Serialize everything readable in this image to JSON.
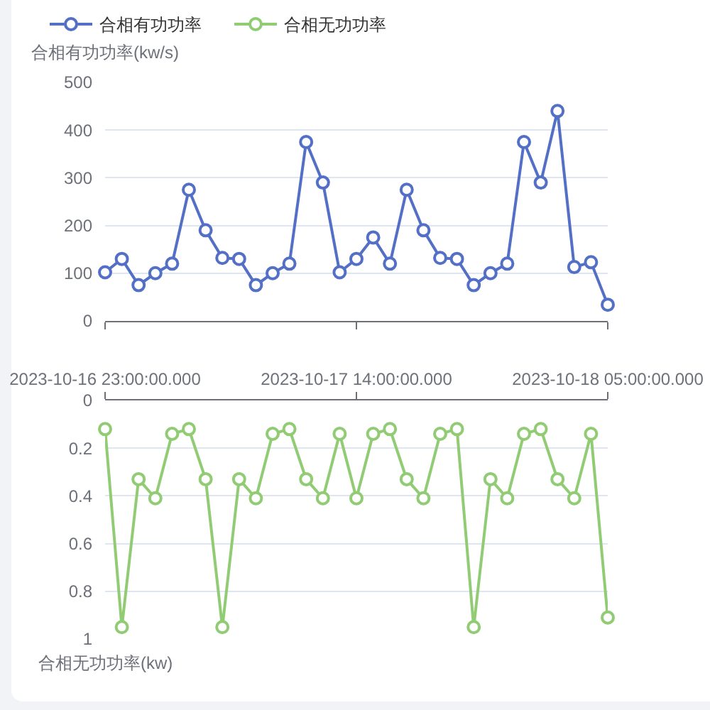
{
  "chart_data": [
    {
      "type": "line",
      "categories": [
        "2023-10-16 23:00:00.000",
        null,
        null,
        null,
        null,
        null,
        null,
        null,
        null,
        null,
        null,
        null,
        null,
        null,
        null,
        "2023-10-17 14:00:00.000",
        null,
        null,
        null,
        null,
        null,
        null,
        null,
        null,
        null,
        null,
        null,
        null,
        null,
        null,
        "2023-10-18 05:00:00.000"
      ],
      "series": [
        {
          "name": "合相有功功率",
          "color": "#5470c6",
          "values": [
            102,
            130,
            75,
            100,
            120,
            275,
            190,
            132,
            130,
            75,
            100,
            120,
            375,
            290,
            102,
            130,
            175,
            120,
            275,
            190,
            132,
            130,
            75,
            100,
            120,
            375,
            290,
            440,
            113,
            123,
            34
          ]
        }
      ],
      "ylabel": "合相有功功率(kw/s)",
      "ylim": [
        0,
        500
      ],
      "yticks": [
        0,
        100,
        200,
        300,
        400,
        500
      ],
      "grid": "y",
      "legend": "top left",
      "marker": "circle",
      "line_style": "solid",
      "tick_labels": "y"
    },
    {
      "type": "line",
      "categories": [
        "2023-10-16 23:00:00.000",
        null,
        null,
        null,
        null,
        null,
        null,
        null,
        null,
        null,
        null,
        null,
        null,
        null,
        null,
        "2023-10-17 14:00:00.000",
        null,
        null,
        null,
        null,
        null,
        null,
        null,
        null,
        null,
        null,
        null,
        null,
        null,
        null,
        "2023-10-18 05:00:00.000"
      ],
      "series": [
        {
          "name": "合相无功功率",
          "color": "#91cc75",
          "values": [
            0.12,
            0.95,
            0.33,
            0.41,
            0.14,
            0.12,
            0.33,
            0.95,
            0.33,
            0.41,
            0.14,
            0.12,
            0.33,
            0.41,
            0.14,
            0.41,
            0.14,
            0.12,
            0.33,
            0.41,
            0.14,
            0.12,
            0.95,
            0.33,
            0.41,
            0.14,
            0.12,
            0.33,
            0.41,
            0.14,
            0.91
          ]
        }
      ],
      "ylabel": "合相无功功率(kw)",
      "ylim": [
        1,
        0
      ],
      "yticks": [
        0,
        0.2,
        0.4,
        0.6,
        0.8,
        1
      ],
      "grid": "y",
      "legend": "top left",
      "marker": "circle",
      "line_style": "solid"
    }
  ]
}
